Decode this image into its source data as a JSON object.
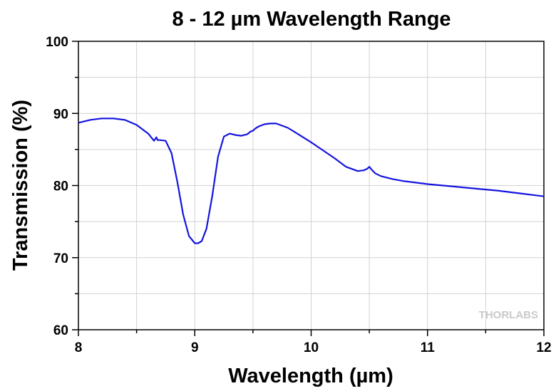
{
  "chart_data": {
    "type": "line",
    "title": "8 - 12 µm Wavelength Range",
    "xlabel": "Wavelength (µm)",
    "ylabel": "Transmission (%)",
    "xlim": [
      8,
      12
    ],
    "ylim": [
      60,
      100
    ],
    "xticks": [
      "8",
      "9",
      "10",
      "11",
      "12"
    ],
    "yticks": [
      "60",
      "70",
      "80",
      "90",
      "100"
    ],
    "grid": true,
    "watermark": "THORLABS",
    "series": [
      {
        "color": "#1414e0",
        "x": [
          8.0,
          8.1,
          8.2,
          8.3,
          8.4,
          8.5,
          8.6,
          8.65,
          8.67,
          8.68,
          8.7,
          8.75,
          8.8,
          8.85,
          8.9,
          8.95,
          9.0,
          9.03,
          9.06,
          9.1,
          9.15,
          9.2,
          9.25,
          9.3,
          9.35,
          9.4,
          9.45,
          9.48,
          9.5,
          9.52,
          9.55,
          9.6,
          9.65,
          9.7,
          9.8,
          9.9,
          10.0,
          10.1,
          10.2,
          10.3,
          10.4,
          10.45,
          10.48,
          10.5,
          10.52,
          10.55,
          10.6,
          10.7,
          10.8,
          10.9,
          11.0,
          11.2,
          11.4,
          11.6,
          11.8,
          12.0
        ],
        "y": [
          88.7,
          89.1,
          89.3,
          89.3,
          89.1,
          88.4,
          87.2,
          86.2,
          86.7,
          86.3,
          86.3,
          86.2,
          84.5,
          80.5,
          76.0,
          73.0,
          72.0,
          72.0,
          72.3,
          74.0,
          78.5,
          84.0,
          86.8,
          87.2,
          87.0,
          86.9,
          87.1,
          87.5,
          87.6,
          87.9,
          88.2,
          88.5,
          88.6,
          88.6,
          88.0,
          87.0,
          86.0,
          84.9,
          83.8,
          82.6,
          82.0,
          82.1,
          82.3,
          82.6,
          82.2,
          81.7,
          81.3,
          80.9,
          80.6,
          80.4,
          80.2,
          79.9,
          79.6,
          79.3,
          78.9,
          78.5
        ]
      }
    ]
  }
}
